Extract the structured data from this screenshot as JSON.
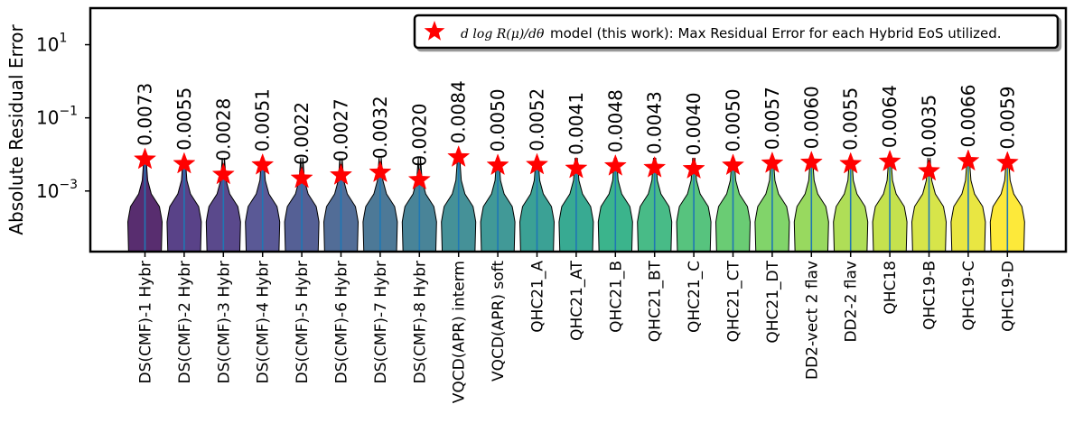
{
  "chart_data": {
    "type": "violin",
    "ylabel": "Absolute Residual Error",
    "xlabel": "",
    "yscale": "log",
    "ylim": [
      2.2e-05,
      100
    ],
    "yticks": [
      {
        "value": 10,
        "base": "10",
        "exp": "1"
      },
      {
        "value": 0.1,
        "base": "10",
        "exp": "−1"
      },
      {
        "value": 0.001,
        "base": "10",
        "exp": "−3"
      }
    ],
    "grid": false,
    "legend": {
      "placement": "top-right",
      "math": "d log R(μ)/dθ",
      "text": "model (this work): Max Residual Error for each Hybrid EoS utilized.",
      "marker": "star",
      "color": "#ff0000"
    },
    "categories": [
      "DS(CMF)-1 Hybr",
      "DS(CMF)-2 Hybr",
      "DS(CMF)-3 Hybr",
      "DS(CMF)-4 Hybr",
      "DS(CMF)-5 Hybr",
      "DS(CMF)-6 Hybr",
      "DS(CMF)-7 Hybr",
      "DS(CMF)-8 Hybr",
      "VQCD(APR) interm",
      "VQCD(APR) soft",
      "QHC21_A",
      "QHC21_AT",
      "QHC21_B",
      "QHC21_BT",
      "QHC21_C",
      "QHC21_CT",
      "QHC21_DT",
      "DD2-vect 2 flav",
      "DD2-2 flav",
      "QHC18",
      "QHC19-B",
      "QHC19-C",
      "QHC19-D"
    ],
    "max_errors": [
      0.0073,
      0.0055,
      0.0028,
      0.0051,
      0.0022,
      0.0027,
      0.0032,
      0.002,
      0.0084,
      0.005,
      0.0052,
      0.0041,
      0.0048,
      0.0043,
      0.004,
      0.005,
      0.0057,
      0.006,
      0.0055,
      0.0064,
      0.0035,
      0.0066,
      0.0059
    ],
    "max_error_labels": [
      "0.0073",
      "0.0055",
      "0.0028",
      "0.0051",
      "0.0022",
      "0.0027",
      "0.0032",
      "0.0020",
      "0.0084",
      "0.0050",
      "0.0052",
      "0.0041",
      "0.0048",
      "0.0043",
      "0.0040",
      "0.0050",
      "0.0057",
      "0.0060",
      "0.0055",
      "0.0064",
      "0.0035",
      "0.0066",
      "0.0059"
    ],
    "violin_colors": [
      "#46165f",
      "#472d7b",
      "#48357f",
      "#48478b",
      "#434f8a",
      "#3f5d8c",
      "#3a6a8c",
      "#35778d",
      "#31858d",
      "#2c8e8c",
      "#26978a",
      "#22a186",
      "#26ac80",
      "#34b47a",
      "#45bd70",
      "#5ac765",
      "#73cf5a",
      "#8dd54e",
      "#a6da45",
      "#bfdf3b",
      "#d3e236",
      "#e7e32d",
      "#fde725"
    ],
    "star_color": "#ff0000",
    "median_line_color": "#1f77b4"
  }
}
